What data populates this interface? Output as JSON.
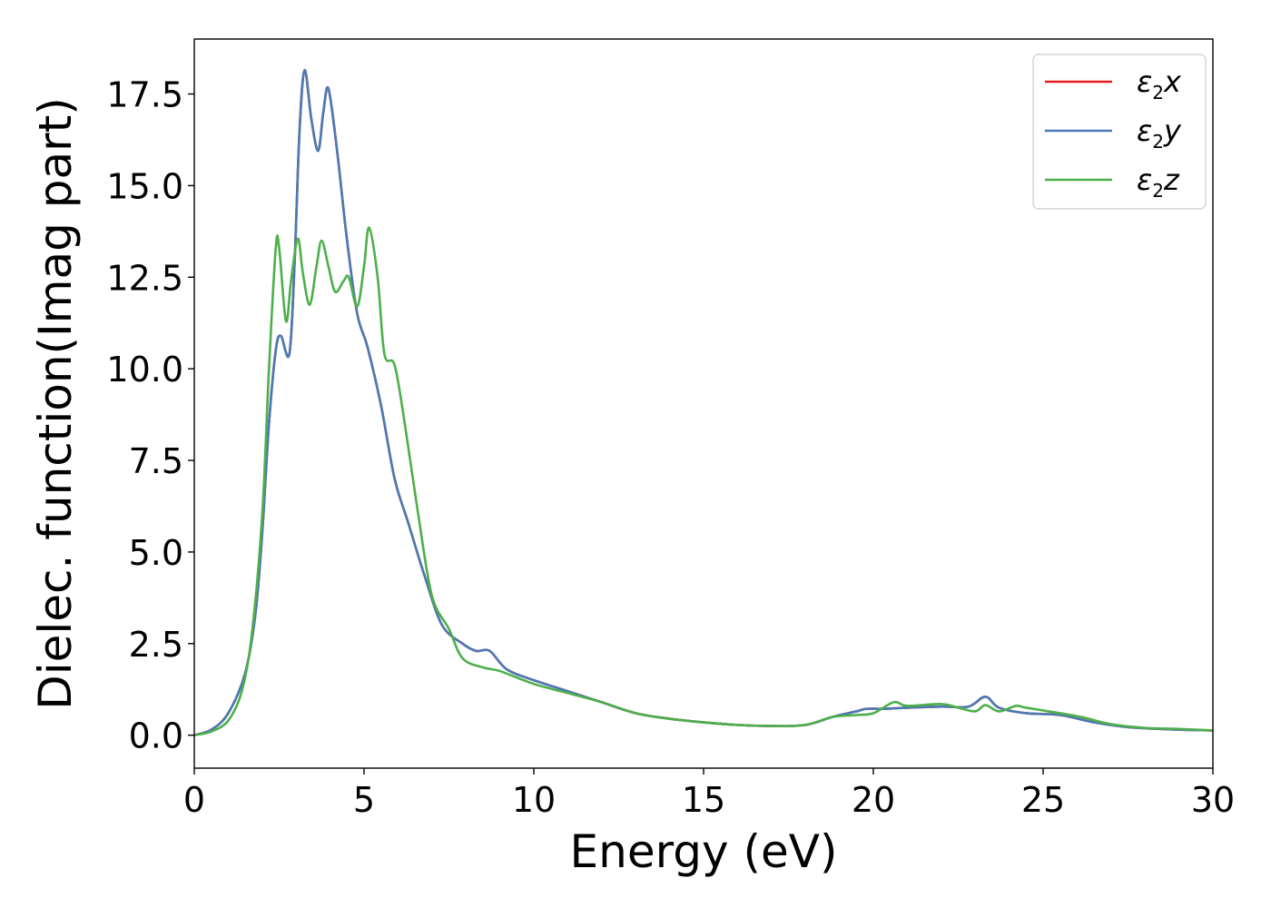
{
  "chart_data": {
    "type": "line",
    "xlabel": "Energy (eV)",
    "ylabel": "Dielec. function(Imag part)",
    "xlim": [
      0,
      30
    ],
    "ylim": [
      -0.9,
      19.0
    ],
    "xticks": [
      0,
      5,
      10,
      15,
      20,
      25,
      30
    ],
    "xtick_labels": [
      "0",
      "5",
      "10",
      "15",
      "20",
      "25",
      "30"
    ],
    "yticks": [
      0.0,
      2.5,
      5.0,
      7.5,
      10.0,
      12.5,
      15.0,
      17.5
    ],
    "ytick_labels": [
      "0.0",
      "2.5",
      "5.0",
      "7.5",
      "10.0",
      "12.5",
      "15.0",
      "17.5"
    ],
    "grid": false,
    "legend_position": "top-right",
    "series": [
      {
        "name": "ε2x",
        "legend_symbol": "ε",
        "legend_sub": "2",
        "legend_var": "x",
        "color": "#e41a1c",
        "points": [
          [
            0,
            0
          ],
          [
            0.5,
            0.15
          ],
          [
            1.0,
            0.6
          ],
          [
            1.5,
            1.7
          ],
          [
            1.8,
            3.3
          ],
          [
            2.0,
            5.5
          ],
          [
            2.2,
            8.5
          ],
          [
            2.4,
            10.5
          ],
          [
            2.55,
            10.9
          ],
          [
            2.8,
            10.4
          ],
          [
            2.95,
            12.8
          ],
          [
            3.1,
            16.5
          ],
          [
            3.25,
            18.15
          ],
          [
            3.45,
            16.8
          ],
          [
            3.65,
            15.95
          ],
          [
            3.8,
            17.0
          ],
          [
            3.95,
            17.65
          ],
          [
            4.2,
            16.0
          ],
          [
            4.5,
            13.5
          ],
          [
            4.8,
            11.5
          ],
          [
            5.1,
            10.6
          ],
          [
            5.5,
            9.0
          ],
          [
            5.9,
            7.0
          ],
          [
            6.3,
            5.8
          ],
          [
            6.8,
            4.3
          ],
          [
            7.3,
            3.0
          ],
          [
            7.9,
            2.5
          ],
          [
            8.3,
            2.3
          ],
          [
            8.7,
            2.3
          ],
          [
            9.2,
            1.8
          ],
          [
            10.0,
            1.5
          ],
          [
            11.0,
            1.2
          ],
          [
            12.0,
            0.9
          ],
          [
            13.0,
            0.6
          ],
          [
            14.0,
            0.45
          ],
          [
            15.0,
            0.35
          ],
          [
            16.0,
            0.28
          ],
          [
            17.0,
            0.25
          ],
          [
            18.0,
            0.28
          ],
          [
            18.8,
            0.5
          ],
          [
            19.5,
            0.65
          ],
          [
            19.8,
            0.72
          ],
          [
            20.3,
            0.72
          ],
          [
            21.0,
            0.75
          ],
          [
            22.0,
            0.78
          ],
          [
            22.8,
            0.78
          ],
          [
            23.3,
            1.05
          ],
          [
            23.7,
            0.75
          ],
          [
            24.5,
            0.6
          ],
          [
            25.5,
            0.55
          ],
          [
            26.5,
            0.35
          ],
          [
            27.5,
            0.22
          ],
          [
            29.0,
            0.15
          ],
          [
            30.0,
            0.13
          ]
        ]
      },
      {
        "name": "ε2y",
        "legend_symbol": "ε",
        "legend_sub": "2",
        "legend_var": "y",
        "color": "#4a7ab5",
        "points": [
          [
            0,
            0
          ],
          [
            0.5,
            0.15
          ],
          [
            1.0,
            0.6
          ],
          [
            1.5,
            1.7
          ],
          [
            1.8,
            3.3
          ],
          [
            2.0,
            5.5
          ],
          [
            2.2,
            8.5
          ],
          [
            2.4,
            10.5
          ],
          [
            2.55,
            10.9
          ],
          [
            2.8,
            10.4
          ],
          [
            2.95,
            12.8
          ],
          [
            3.1,
            16.5
          ],
          [
            3.25,
            18.15
          ],
          [
            3.45,
            16.8
          ],
          [
            3.65,
            15.95
          ],
          [
            3.8,
            17.0
          ],
          [
            3.95,
            17.65
          ],
          [
            4.2,
            16.0
          ],
          [
            4.5,
            13.5
          ],
          [
            4.8,
            11.5
          ],
          [
            5.1,
            10.6
          ],
          [
            5.5,
            9.0
          ],
          [
            5.9,
            7.0
          ],
          [
            6.3,
            5.8
          ],
          [
            6.8,
            4.3
          ],
          [
            7.3,
            3.0
          ],
          [
            7.9,
            2.5
          ],
          [
            8.3,
            2.3
          ],
          [
            8.7,
            2.3
          ],
          [
            9.2,
            1.8
          ],
          [
            10.0,
            1.5
          ],
          [
            11.0,
            1.2
          ],
          [
            12.0,
            0.9
          ],
          [
            13.0,
            0.6
          ],
          [
            14.0,
            0.45
          ],
          [
            15.0,
            0.35
          ],
          [
            16.0,
            0.28
          ],
          [
            17.0,
            0.25
          ],
          [
            18.0,
            0.28
          ],
          [
            18.8,
            0.5
          ],
          [
            19.5,
            0.65
          ],
          [
            19.8,
            0.72
          ],
          [
            20.3,
            0.72
          ],
          [
            21.0,
            0.75
          ],
          [
            22.0,
            0.78
          ],
          [
            22.8,
            0.78
          ],
          [
            23.3,
            1.05
          ],
          [
            23.7,
            0.75
          ],
          [
            24.5,
            0.6
          ],
          [
            25.5,
            0.55
          ],
          [
            26.5,
            0.35
          ],
          [
            27.5,
            0.22
          ],
          [
            29.0,
            0.15
          ],
          [
            30.0,
            0.13
          ]
        ]
      },
      {
        "name": "ε2z",
        "legend_symbol": "ε",
        "legend_sub": "2",
        "legend_var": "z",
        "color": "#4daf4a",
        "points": [
          [
            0,
            0
          ],
          [
            0.5,
            0.1
          ],
          [
            1.0,
            0.4
          ],
          [
            1.4,
            1.2
          ],
          [
            1.7,
            2.8
          ],
          [
            2.0,
            6.0
          ],
          [
            2.2,
            10.0
          ],
          [
            2.4,
            13.3
          ],
          [
            2.5,
            13.3
          ],
          [
            2.7,
            11.3
          ],
          [
            2.85,
            12.4
          ],
          [
            3.05,
            13.55
          ],
          [
            3.2,
            12.6
          ],
          [
            3.4,
            11.75
          ],
          [
            3.6,
            12.8
          ],
          [
            3.75,
            13.5
          ],
          [
            3.95,
            12.8
          ],
          [
            4.15,
            12.1
          ],
          [
            4.4,
            12.4
          ],
          [
            4.55,
            12.5
          ],
          [
            4.8,
            11.7
          ],
          [
            5.0,
            12.8
          ],
          [
            5.15,
            13.85
          ],
          [
            5.4,
            12.5
          ],
          [
            5.6,
            10.4
          ],
          [
            5.9,
            10.1
          ],
          [
            6.2,
            8.5
          ],
          [
            6.6,
            6.0
          ],
          [
            7.0,
            3.8
          ],
          [
            7.5,
            2.9
          ],
          [
            7.9,
            2.1
          ],
          [
            8.5,
            1.85
          ],
          [
            9.0,
            1.75
          ],
          [
            10.0,
            1.4
          ],
          [
            11.0,
            1.15
          ],
          [
            12.0,
            0.9
          ],
          [
            13.0,
            0.6
          ],
          [
            14.0,
            0.45
          ],
          [
            15.0,
            0.35
          ],
          [
            16.0,
            0.28
          ],
          [
            17.0,
            0.25
          ],
          [
            18.0,
            0.28
          ],
          [
            18.8,
            0.5
          ],
          [
            19.5,
            0.55
          ],
          [
            20.0,
            0.6
          ],
          [
            20.6,
            0.9
          ],
          [
            21.0,
            0.8
          ],
          [
            22.0,
            0.85
          ],
          [
            22.5,
            0.75
          ],
          [
            23.0,
            0.65
          ],
          [
            23.3,
            0.82
          ],
          [
            23.7,
            0.65
          ],
          [
            24.2,
            0.8
          ],
          [
            24.5,
            0.75
          ],
          [
            25.5,
            0.6
          ],
          [
            26.2,
            0.48
          ],
          [
            27.0,
            0.3
          ],
          [
            28.0,
            0.2
          ],
          [
            29.0,
            0.17
          ],
          [
            30.0,
            0.13
          ]
        ]
      }
    ]
  }
}
